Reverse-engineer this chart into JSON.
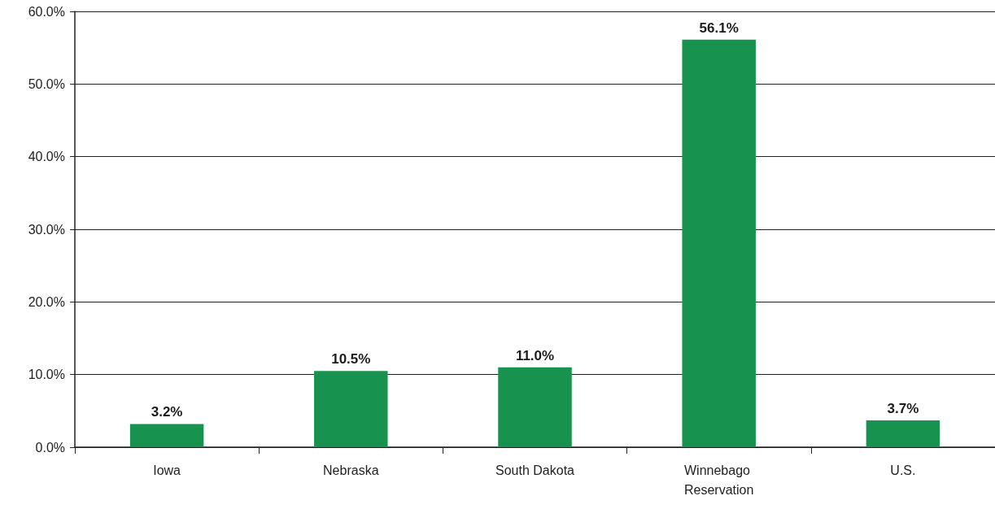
{
  "chart_data": {
    "type": "bar",
    "categories": [
      "Iowa",
      "Nebraska",
      "South Dakota",
      "Winnebago Reservation",
      "U.S."
    ],
    "values": [
      3.2,
      10.5,
      11.0,
      56.1,
      3.7
    ],
    "value_labels": [
      "3.2%",
      "10.5%",
      "11.0%",
      "56.1%",
      "3.7%"
    ],
    "color": "#17924f",
    "ylim": [
      0,
      60
    ],
    "yticks": [
      {
        "value": 0,
        "label": "0.0%"
      },
      {
        "value": 10,
        "label": "10.0%"
      },
      {
        "value": 20,
        "label": "20.0%"
      },
      {
        "value": 30,
        "label": "30.0%"
      },
      {
        "value": 40,
        "label": "40.0%"
      },
      {
        "value": 50,
        "label": "50.0%"
      },
      {
        "value": 60,
        "label": "60.0%"
      }
    ],
    "grid": "y"
  }
}
